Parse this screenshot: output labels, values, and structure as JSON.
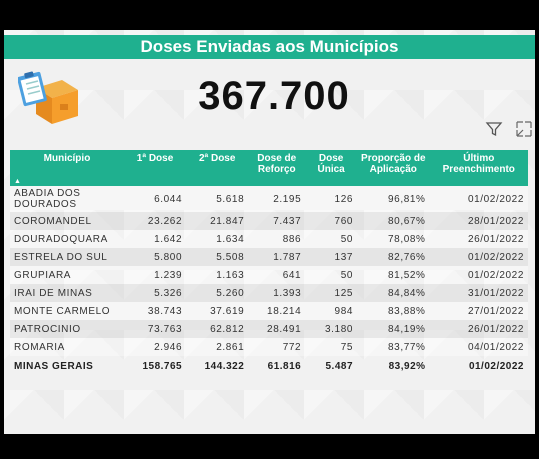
{
  "title": "Doses Enviadas aos Municípios",
  "big_number": "367.700",
  "icons": {
    "header_icon": "clipboard-box-icon",
    "filter": "filter-icon",
    "expand": "focus-mode-icon"
  },
  "colors": {
    "accent": "#1fb08f"
  },
  "table": {
    "columns": [
      "Município",
      "1ª Dose",
      "2ª Dose",
      "Dose de Reforço",
      "Dose Única",
      "Proporção de Aplicação",
      "Último Preenchimento"
    ],
    "rows": [
      [
        "ABADIA DOS DOURADOS",
        "6.044",
        "5.618",
        "2.195",
        "126",
        "96,81%",
        "01/02/2022"
      ],
      [
        "COROMANDEL",
        "23.262",
        "21.847",
        "7.437",
        "760",
        "80,67%",
        "28/01/2022"
      ],
      [
        "DOURADOQUARA",
        "1.642",
        "1.634",
        "886",
        "50",
        "78,08%",
        "26/01/2022"
      ],
      [
        "ESTRELA DO SUL",
        "5.800",
        "5.508",
        "1.787",
        "137",
        "82,76%",
        "01/02/2022"
      ],
      [
        "GRUPIARA",
        "1.239",
        "1.163",
        "641",
        "50",
        "81,52%",
        "01/02/2022"
      ],
      [
        "IRAI DE MINAS",
        "5.326",
        "5.260",
        "1.393",
        "125",
        "84,84%",
        "31/01/2022"
      ],
      [
        "MONTE CARMELO",
        "38.743",
        "37.619",
        "18.214",
        "984",
        "83,88%",
        "27/01/2022"
      ],
      [
        "PATROCINIO",
        "73.763",
        "62.812",
        "28.491",
        "3.180",
        "84,19%",
        "26/01/2022"
      ],
      [
        "ROMARIA",
        "2.946",
        "2.861",
        "772",
        "75",
        "83,77%",
        "04/01/2022"
      ]
    ],
    "total": [
      "MINAS GERAIS",
      "158.765",
      "144.322",
      "61.816",
      "5.487",
      "83,92%",
      "01/02/2022"
    ]
  }
}
